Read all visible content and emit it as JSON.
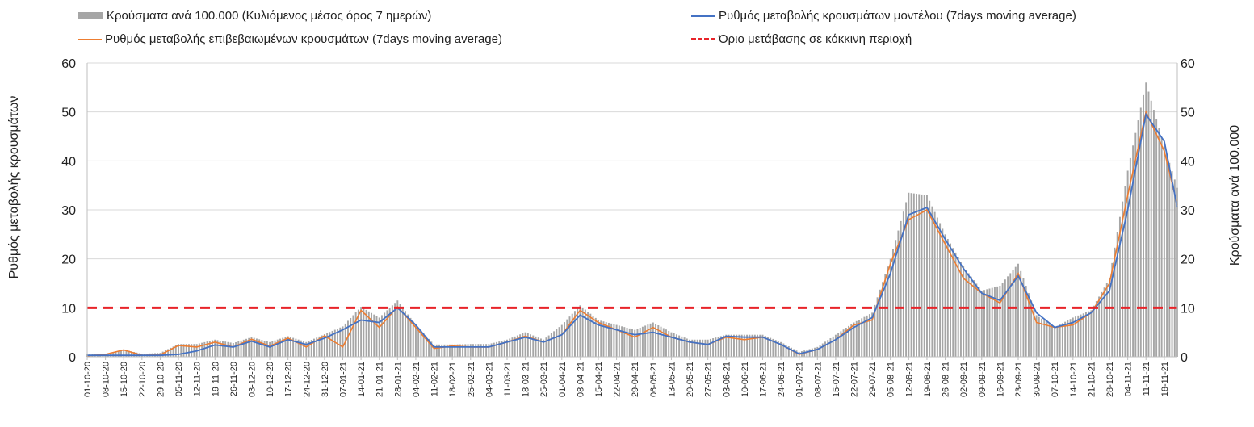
{
  "legend": {
    "bars": "Κρούσματα ανά 100.000 (Κυλιόμενος μέσος όρος 7 ημερών)",
    "model": "Ρυθμός μεταβολής κρουσμάτων μοντέλου (7days moving average)",
    "confirmed": "Ρυθμός μεταβολής επιβεβαιωμένων κρουσμάτων (7days moving average)",
    "threshold": "Όριο μετάβασης σε κόκκινη περιοχή"
  },
  "axes": {
    "y_left_label": "Ρυθμός μεταβολής κρουσμάτων",
    "y_right_label": "Κρούσματα ανά 100.000"
  },
  "colors": {
    "bars": "#a6a6a6",
    "model": "#4472c4",
    "confirmed": "#ed7d31",
    "threshold": "#e8242a",
    "grid": "#d9d9d9"
  },
  "chart_data": {
    "type": "bar",
    "x_type": "date",
    "x_start": "01-10-20",
    "x_end": "23-11-21",
    "xticks": [
      "01-10-20",
      "08-10-20",
      "15-10-20",
      "22-10-20",
      "29-10-20",
      "05-11-20",
      "12-11-20",
      "19-11-20",
      "26-11-20",
      "03-12-20",
      "10-12-20",
      "17-12-20",
      "24-12-20",
      "31-12-20",
      "07-01-21",
      "14-01-21",
      "21-01-21",
      "28-01-21",
      "04-02-21",
      "11-02-21",
      "18-02-21",
      "25-02-21",
      "04-03-21",
      "11-03-21",
      "18-03-21",
      "25-03-21",
      "01-04-21",
      "08-04-21",
      "15-04-21",
      "22-04-21",
      "29-04-21",
      "06-05-21",
      "13-05-21",
      "20-05-21",
      "27-05-21",
      "03-06-21",
      "10-06-21",
      "17-06-21",
      "24-06-21",
      "01-07-21",
      "08-07-21",
      "15-07-21",
      "22-07-21",
      "29-07-21",
      "05-08-21",
      "12-08-21",
      "19-08-21",
      "26-08-21",
      "02-09-21",
      "09-09-21",
      "16-09-21",
      "23-09-21",
      "30-09-21",
      "07-10-21",
      "14-10-21",
      "21-10-21",
      "28-10-21",
      "04-11-21",
      "11-11-21",
      "18-11-21"
    ],
    "ylim_left": [
      0,
      60
    ],
    "ylim_right": [
      0,
      60
    ],
    "yticks": [
      0,
      10,
      20,
      30,
      40,
      50,
      60
    ],
    "threshold": 10,
    "grid": "horizontal",
    "legend_position": "top",
    "series": [
      {
        "name": "Κρούσματα ανά 100.000 (Κυλιόμενος μέσος όρος 7 ημερών)",
        "kind": "bar",
        "axis": "right",
        "x": [
          "01-10-20",
          "08-10-20",
          "15-10-20",
          "22-10-20",
          "29-10-20",
          "05-11-20",
          "12-11-20",
          "19-11-20",
          "26-11-20",
          "03-12-20",
          "10-12-20",
          "17-12-20",
          "24-12-20",
          "31-12-20",
          "07-01-21",
          "14-01-21",
          "21-01-21",
          "28-01-21",
          "04-02-21",
          "11-02-21",
          "18-02-21",
          "25-02-21",
          "04-03-21",
          "11-03-21",
          "18-03-21",
          "25-03-21",
          "01-04-21",
          "08-04-21",
          "15-04-21",
          "22-04-21",
          "29-04-21",
          "06-05-21",
          "13-05-21",
          "20-05-21",
          "27-05-21",
          "03-06-21",
          "10-06-21",
          "17-06-21",
          "24-06-21",
          "01-07-21",
          "08-07-21",
          "15-07-21",
          "22-07-21",
          "29-07-21",
          "05-08-21",
          "12-08-21",
          "19-08-21",
          "26-08-21",
          "02-09-21",
          "09-09-21",
          "16-09-21",
          "23-09-21",
          "30-09-21",
          "07-10-21",
          "14-10-21",
          "21-10-21",
          "28-10-21",
          "04-11-21",
          "11-11-21",
          "18-11-21",
          "23-11-21"
        ],
        "values": [
          0.5,
          0.6,
          1.5,
          0.6,
          0.8,
          2.6,
          2.6,
          3.5,
          2.8,
          4.0,
          3.0,
          4.2,
          3.0,
          4.6,
          6.2,
          10.2,
          8.0,
          11.5,
          6.5,
          2.5,
          2.5,
          2.6,
          2.6,
          3.5,
          5.0,
          3.5,
          6.5,
          10.5,
          7.5,
          6.5,
          5.5,
          7.0,
          5.0,
          3.5,
          3.5,
          4.5,
          4.5,
          4.5,
          3.0,
          1.0,
          2.0,
          4.5,
          7.0,
          9.0,
          20.0,
          33.5,
          33.0,
          25.0,
          18.5,
          13.5,
          14.5,
          19.0,
          8.5,
          6.0,
          8.0,
          9.5,
          16.0,
          38.0,
          56.0,
          43.0,
          34.5
        ]
      },
      {
        "name": "Ρυθμός μεταβολής κρουσμάτων μοντέλου (7days moving average)",
        "kind": "line",
        "axis": "left",
        "x": [
          "01-10-20",
          "08-10-20",
          "15-10-20",
          "22-10-20",
          "29-10-20",
          "05-11-20",
          "12-11-20",
          "19-11-20",
          "26-11-20",
          "03-12-20",
          "10-12-20",
          "17-12-20",
          "24-12-20",
          "31-12-20",
          "07-01-21",
          "14-01-21",
          "21-01-21",
          "28-01-21",
          "04-02-21",
          "11-02-21",
          "18-02-21",
          "25-02-21",
          "04-03-21",
          "11-03-21",
          "18-03-21",
          "25-03-21",
          "01-04-21",
          "08-04-21",
          "15-04-21",
          "22-04-21",
          "29-04-21",
          "06-05-21",
          "13-05-21",
          "20-05-21",
          "27-05-21",
          "03-06-21",
          "10-06-21",
          "17-06-21",
          "24-06-21",
          "01-07-21",
          "08-07-21",
          "15-07-21",
          "22-07-21",
          "29-07-21",
          "05-08-21",
          "12-08-21",
          "19-08-21",
          "26-08-21",
          "02-09-21",
          "09-09-21",
          "16-09-21",
          "23-09-21",
          "30-09-21",
          "07-10-21",
          "14-10-21",
          "21-10-21",
          "28-10-21",
          "04-11-21",
          "11-11-21",
          "18-11-21",
          "23-11-21"
        ],
        "values": [
          0.3,
          0.3,
          0.3,
          0.3,
          0.3,
          0.5,
          1.2,
          2.4,
          2.0,
          3.2,
          2.0,
          3.5,
          2.5,
          3.8,
          5.5,
          7.5,
          7.0,
          10.0,
          6.5,
          2.0,
          2.0,
          2.0,
          2.0,
          3.0,
          4.0,
          3.0,
          4.5,
          8.5,
          6.5,
          5.5,
          4.5,
          5.0,
          4.0,
          3.0,
          2.5,
          4.2,
          4.0,
          4.0,
          2.5,
          0.6,
          1.5,
          3.5,
          6.0,
          8.0,
          17.0,
          29.0,
          30.5,
          24.0,
          18.0,
          13.0,
          11.5,
          16.5,
          9.0,
          6.0,
          7.0,
          9.0,
          13.5,
          30.0,
          49.5,
          44.0,
          30.5
        ]
      },
      {
        "name": "Ρυθμός μεταβολής επιβεβαιωμένων κρουσμάτων (7days moving average)",
        "kind": "line",
        "axis": "left",
        "x": [
          "01-10-20",
          "08-10-20",
          "15-10-20",
          "22-10-20",
          "29-10-20",
          "05-11-20",
          "12-11-20",
          "19-11-20",
          "26-11-20",
          "03-12-20",
          "10-12-20",
          "17-12-20",
          "24-12-20",
          "31-12-20",
          "07-01-21",
          "14-01-21",
          "21-01-21",
          "28-01-21",
          "04-02-21",
          "11-02-21",
          "18-02-21",
          "25-02-21",
          "04-03-21",
          "11-03-21",
          "18-03-21",
          "25-03-21",
          "01-04-21",
          "08-04-21",
          "15-04-21",
          "22-04-21",
          "29-04-21",
          "06-05-21",
          "13-05-21",
          "20-05-21",
          "27-05-21",
          "03-06-21",
          "10-06-21",
          "17-06-21",
          "24-06-21",
          "01-07-21",
          "08-07-21",
          "15-07-21",
          "22-07-21",
          "29-07-21",
          "05-08-21",
          "12-08-21",
          "19-08-21",
          "26-08-21",
          "02-09-21",
          "09-09-21",
          "16-09-21",
          "23-09-21",
          "30-09-21",
          "07-10-21",
          "14-10-21",
          "21-10-21",
          "28-10-21",
          "04-11-21",
          "11-11-21",
          "18-11-21",
          "23-11-21"
        ],
        "values": [
          0.2,
          0.5,
          1.4,
          0.3,
          0.4,
          2.3,
          2.0,
          3.0,
          2.0,
          3.6,
          2.2,
          3.8,
          2.0,
          4.3,
          2.0,
          9.5,
          6.0,
          10.2,
          6.0,
          1.7,
          2.2,
          2.0,
          2.0,
          3.0,
          4.2,
          3.0,
          4.5,
          9.5,
          7.0,
          5.5,
          4.0,
          6.0,
          4.0,
          3.0,
          2.5,
          4.0,
          3.5,
          4.0,
          2.5,
          0.5,
          1.5,
          3.5,
          6.5,
          7.5,
          19.0,
          28.0,
          30.0,
          23.0,
          16.0,
          13.0,
          11.0,
          17.0,
          7.0,
          6.0,
          6.5,
          9.0,
          15.0,
          33.0,
          50.0,
          42.0,
          31.0
        ]
      }
    ]
  }
}
